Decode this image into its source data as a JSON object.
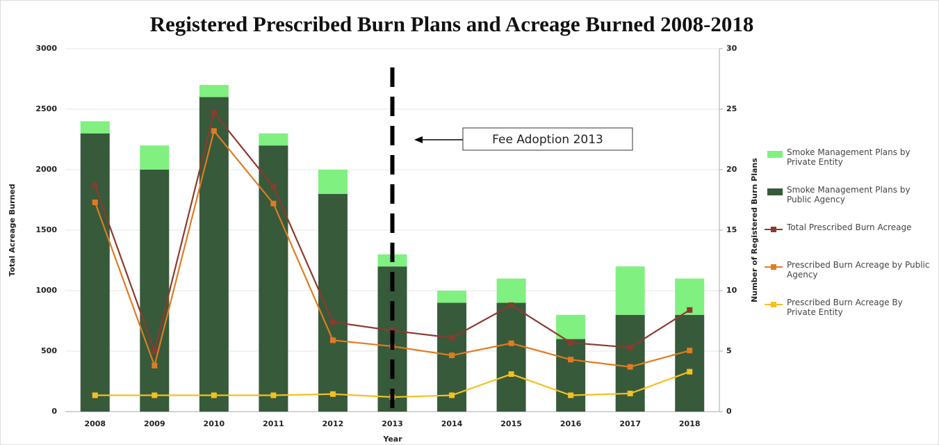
{
  "chart_data": {
    "type": "bar-line",
    "title": "Registered Prescribed Burn Plans and Acreage Burned 2008-2018",
    "x_label": "Year",
    "y_label": "Total Acreage Burned",
    "y2_label": "Number of Registered Burn Plans",
    "annotation": "Fee Adoption 2013",
    "annotation_category": 5,
    "categories": [
      "2008",
      "2009",
      "2010",
      "2011",
      "2012",
      "2013",
      "2014",
      "2015",
      "2016",
      "2017",
      "2018"
    ],
    "ylim": [
      0,
      3000
    ],
    "yticks": [
      0,
      500,
      1000,
      1500,
      2000,
      2500,
      3000
    ],
    "y2lim": [
      0,
      30
    ],
    "y2ticks": [
      0,
      5,
      10,
      15,
      20,
      25,
      30
    ],
    "grid": true,
    "legend": "right",
    "series": [
      {
        "name": "Smoke Management Plans by Private Entity",
        "kind": "bar",
        "axis": "y2",
        "color": "#80f080",
        "values": [
          1,
          2,
          1,
          1,
          2,
          1,
          1,
          2,
          2,
          4,
          3
        ]
      },
      {
        "name": "Smoke Management Plans by Public Agency",
        "kind": "bar",
        "axis": "y2",
        "color": "#375a3a",
        "values": [
          23,
          20,
          26,
          22,
          18,
          12,
          9,
          9,
          6,
          8,
          8
        ]
      },
      {
        "name": "Total Prescribed Burn Acreage",
        "kind": "line",
        "color": "#8b3a2f",
        "values": [
          1870,
          500,
          2470,
          1860,
          740,
          670,
          610,
          880,
          570,
          530,
          840
        ]
      },
      {
        "name": "Prescribed Burn Acreage by Public Agency",
        "kind": "line",
        "color": "#e07b20",
        "values": [
          1730,
          380,
          2320,
          1720,
          590,
          540,
          465,
          565,
          430,
          370,
          505
        ]
      },
      {
        "name": "Prescribed Burn Acreage By Private Entity",
        "kind": "line",
        "color": "#f4c020",
        "values": [
          135,
          135,
          135,
          135,
          145,
          120,
          135,
          310,
          135,
          150,
          330
        ]
      }
    ]
  }
}
